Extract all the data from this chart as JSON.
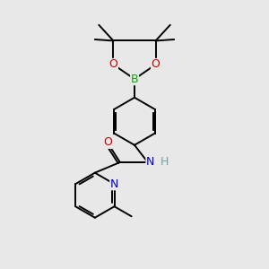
{
  "bg_color": "#e8e8e8",
  "atom_colors": {
    "C": "#000000",
    "H": "#70a0a0",
    "N": "#0000cc",
    "O": "#cc0000",
    "B": "#00aa00"
  },
  "bond_color": "#000000",
  "bond_width": 1.4,
  "fig_size": [
    3.0,
    3.0
  ],
  "dpi": 100
}
